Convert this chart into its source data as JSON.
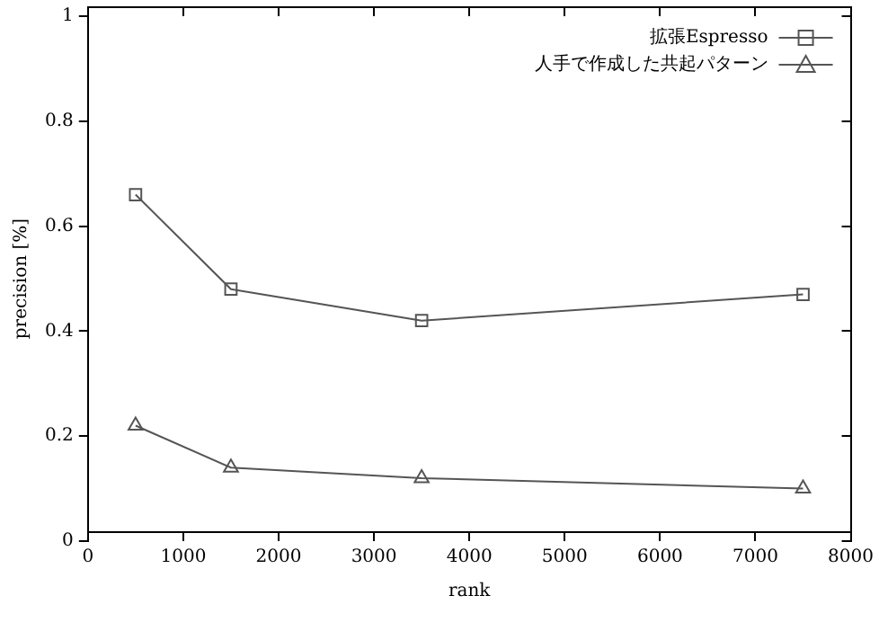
{
  "chart_data": {
    "type": "line",
    "xlabel": "rank",
    "ylabel": "precision [%]",
    "xlim": [
      0,
      8000
    ],
    "xticks": [
      0,
      1000,
      2000,
      3000,
      4000,
      5000,
      6000,
      7000,
      8000
    ],
    "ylim": [
      0,
      1
    ],
    "yticks": [
      0,
      0.2,
      0.4,
      0.6,
      0.8,
      1
    ],
    "grid": false,
    "legend": "top right",
    "series": [
      {
        "name": "拡張Espresso",
        "color": "#555555",
        "marker": "square",
        "x": [
          500,
          1500,
          3500,
          7500
        ],
        "values": [
          0.66,
          0.48,
          0.42,
          0.47
        ]
      },
      {
        "name": "人手で作成した共起パターン",
        "color": "#555555",
        "marker": "triangle",
        "x": [
          500,
          1500,
          3500,
          7500
        ],
        "values": [
          0.22,
          0.14,
          0.12,
          0.1
        ]
      }
    ]
  }
}
